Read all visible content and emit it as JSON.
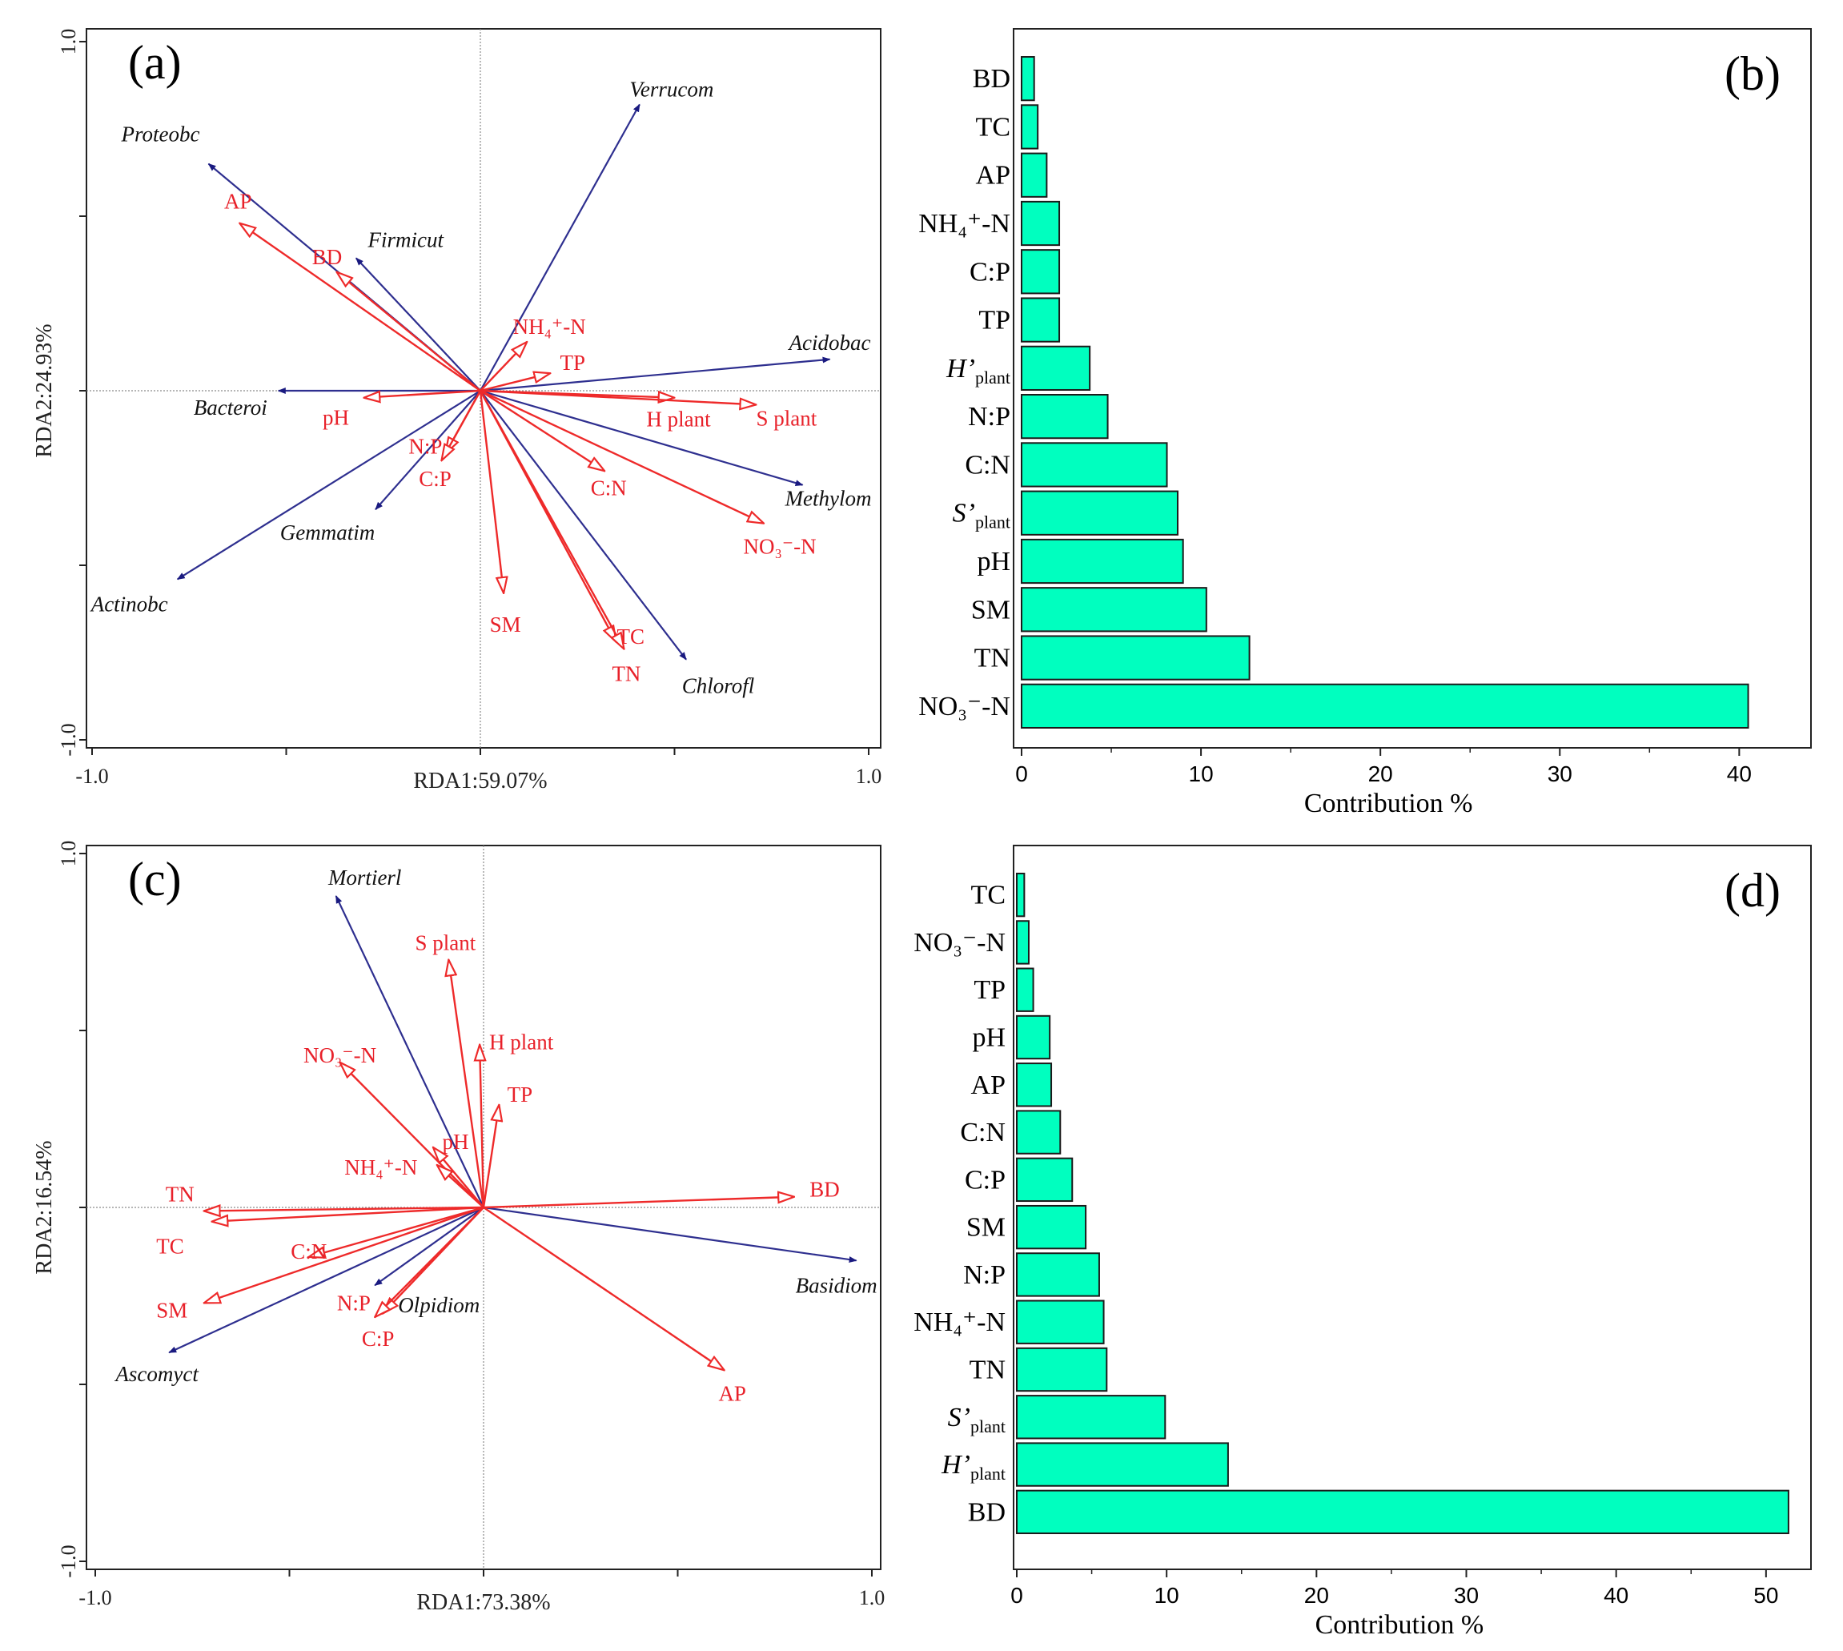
{
  "figure": {
    "colors": {
      "species_arrow": "#2e2f8f",
      "species_arrowhead": "#1a1a80",
      "env_arrow": "#ee2a2a",
      "bar_fill": "#00ffbf",
      "bar_stroke": "#1a1a1a",
      "frame": "#222222"
    }
  },
  "chart_data": [
    {
      "type": "scatter",
      "subtype": "rda-biplot",
      "panel": "(a)",
      "xlabel": "RDA1:59.07%",
      "ylabel": "RDA2:24.93%",
      "xlim": [
        -1.0,
        1.0
      ],
      "ylim": [
        -1.0,
        1.0
      ],
      "x_tick_labels": [
        "-1.0",
        "1.0"
      ],
      "y_tick_labels": [
        "1.0",
        "-1.0"
      ],
      "species": [
        {
          "label": "Verrucom",
          "x": 0.41,
          "y": 0.82
        },
        {
          "label": "Proteobc",
          "x": -0.7,
          "y": 0.65
        },
        {
          "label": "Firmicut",
          "x": -0.32,
          "y": 0.38
        },
        {
          "label": "Acidobac",
          "x": 0.9,
          "y": 0.09
        },
        {
          "label": "Bacteroi",
          "x": -0.52,
          "y": 0.0
        },
        {
          "label": "Methylom",
          "x": 0.83,
          "y": -0.27
        },
        {
          "label": "Gemmatim",
          "x": -0.27,
          "y": -0.34
        },
        {
          "label": "Actinobc",
          "x": -0.78,
          "y": -0.54
        },
        {
          "label": "Chlorofl",
          "x": 0.53,
          "y": -0.77
        }
      ],
      "environment": [
        {
          "label": "AP",
          "x": -0.62,
          "y": 0.48
        },
        {
          "label": "BD",
          "x": -0.37,
          "y": 0.34
        },
        {
          "label": "NH₄⁺-N",
          "x": 0.12,
          "y": 0.14
        },
        {
          "label": "TP",
          "x": 0.18,
          "y": 0.05
        },
        {
          "label": "H plant",
          "x": 0.5,
          "y": -0.02
        },
        {
          "label": "S plant",
          "x": 0.71,
          "y": -0.04
        },
        {
          "label": "pH",
          "x": -0.3,
          "y": -0.02
        },
        {
          "label": "N:P",
          "x": -0.09,
          "y": -0.18
        },
        {
          "label": "C:P",
          "x": -0.1,
          "y": -0.2
        },
        {
          "label": "C:N",
          "x": 0.32,
          "y": -0.23
        },
        {
          "label": "NO₃⁻-N",
          "x": 0.73,
          "y": -0.38
        },
        {
          "label": "SM",
          "x": 0.06,
          "y": -0.58
        },
        {
          "label": "TC",
          "x": 0.35,
          "y": -0.72
        },
        {
          "label": "TN",
          "x": 0.37,
          "y": -0.74
        }
      ]
    },
    {
      "type": "bar",
      "orientation": "horizontal",
      "panel": "(b)",
      "xlabel": "Contribution %",
      "xlim": [
        0,
        44
      ],
      "x_ticks": [
        0,
        10,
        20,
        30,
        40
      ],
      "categories": [
        {
          "label": "BD",
          "value": 0.7
        },
        {
          "label": "TC",
          "value": 0.9
        },
        {
          "label": "AP",
          "value": 1.4
        },
        {
          "label": "NH₄⁺-N",
          "value": 2.1
        },
        {
          "label": "C:P",
          "value": 2.1
        },
        {
          "label": "TP",
          "value": 2.1
        },
        {
          "label": "H’",
          "sub": "plant",
          "italic": true,
          "value": 3.8
        },
        {
          "label": "N:P",
          "value": 4.8
        },
        {
          "label": "C:N",
          "value": 8.1
        },
        {
          "label": "S’",
          "sub": "plant",
          "italic": true,
          "value": 8.7
        },
        {
          "label": "pH",
          "value": 9.0
        },
        {
          "label": "SM",
          "value": 10.3
        },
        {
          "label": "TN",
          "value": 12.7
        },
        {
          "label": "NO₃⁻-N",
          "value": 40.5
        }
      ]
    },
    {
      "type": "scatter",
      "subtype": "rda-biplot",
      "panel": "(c)",
      "xlabel": "RDA1:73.38%",
      "ylabel": "RDA2:16.54%",
      "xlim": [
        -1.0,
        1.0
      ],
      "ylim": [
        -1.0,
        1.0
      ],
      "x_tick_labels": [
        "-1.0",
        "1.0"
      ],
      "y_tick_labels": [
        "1.0",
        "-1.0"
      ],
      "species": [
        {
          "label": "Mortierl",
          "x": -0.38,
          "y": 0.88
        },
        {
          "label": "Basidiom",
          "x": 0.96,
          "y": -0.15
        },
        {
          "label": "Olpidiom",
          "x": -0.28,
          "y": -0.22
        },
        {
          "label": "Ascomyct",
          "x": -0.81,
          "y": -0.41
        }
      ],
      "environment": [
        {
          "label": "S plant",
          "x": -0.09,
          "y": 0.7
        },
        {
          "label": "H plant",
          "x": -0.01,
          "y": 0.46
        },
        {
          "label": "NO₃⁻-N",
          "x": -0.37,
          "y": 0.41
        },
        {
          "label": "TP",
          "x": 0.04,
          "y": 0.29
        },
        {
          "label": "pH",
          "x": -0.13,
          "y": 0.17
        },
        {
          "label": "NH₄⁺-N",
          "x": -0.12,
          "y": 0.12
        },
        {
          "label": "BD",
          "x": 0.8,
          "y": 0.03
        },
        {
          "label": "TN",
          "x": -0.72,
          "y": -0.01
        },
        {
          "label": "TC",
          "x": -0.7,
          "y": -0.04
        },
        {
          "label": "C:N",
          "x": -0.45,
          "y": -0.14
        },
        {
          "label": "SM",
          "x": -0.72,
          "y": -0.27
        },
        {
          "label": "N:P",
          "x": -0.26,
          "y": -0.3
        },
        {
          "label": "C:P",
          "x": -0.28,
          "y": -0.31
        },
        {
          "label": "AP",
          "x": 0.62,
          "y": -0.46
        }
      ]
    },
    {
      "type": "bar",
      "orientation": "horizontal",
      "panel": "(d)",
      "xlabel": "Contribution %",
      "xlim": [
        0,
        53
      ],
      "x_ticks": [
        0,
        10,
        20,
        30,
        40,
        50
      ],
      "categories": [
        {
          "label": "TC",
          "value": 0.5
        },
        {
          "label": "NO₃⁻-N",
          "value": 0.8
        },
        {
          "label": "TP",
          "value": 1.1
        },
        {
          "label": "pH",
          "value": 2.2
        },
        {
          "label": "AP",
          "value": 2.3
        },
        {
          "label": "C:N",
          "value": 2.9
        },
        {
          "label": "C:P",
          "value": 3.7
        },
        {
          "label": "SM",
          "value": 4.6
        },
        {
          "label": "N:P",
          "value": 5.5
        },
        {
          "label": "NH₄⁺-N",
          "value": 5.8
        },
        {
          "label": "TN",
          "value": 6.0
        },
        {
          "label": "S’",
          "sub": "plant",
          "italic": true,
          "value": 9.9
        },
        {
          "label": "H’",
          "sub": "plant",
          "italic": true,
          "value": 14.1
        },
        {
          "label": "BD",
          "value": 51.5
        }
      ]
    }
  ]
}
